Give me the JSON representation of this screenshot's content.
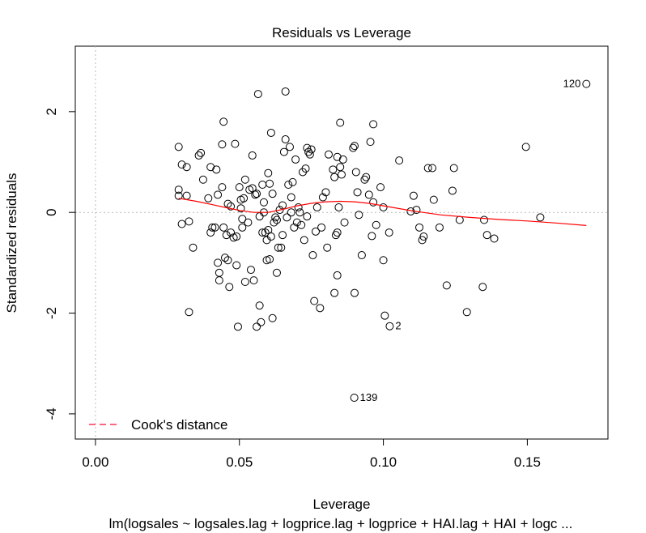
{
  "chart_data": {
    "type": "scatter",
    "title": "Residuals vs Leverage",
    "xlabel": "Leverage",
    "ylabel": "Standardized residuals",
    "subtitle": "lm(logsales ~ logsales.lag + logprice.lag + logprice + HAI.lag + HAI + logc ...",
    "xlim": [
      -0.007,
      0.178
    ],
    "ylim": [
      -4.5,
      3.3
    ],
    "x_ticks": [
      0.0,
      0.05,
      0.1,
      0.15
    ],
    "x_tick_labels": [
      "0.00",
      "0.05",
      "0.10",
      "0.15"
    ],
    "y_ticks": [
      -4,
      -2,
      0,
      2
    ],
    "y_tick_labels": [
      "-4",
      "-2",
      "0",
      "2"
    ],
    "grid": false,
    "reference_lines": [
      {
        "axis": "x",
        "value": 0,
        "style": "dotted",
        "color": "#bbbbbb"
      },
      {
        "axis": "y",
        "value": 0,
        "style": "dotted",
        "color": "#bbbbbb"
      }
    ],
    "legend": {
      "position": "bottom-left",
      "entries": [
        {
          "label": "Cook's distance",
          "color": "#ff3355",
          "style": "dashed"
        }
      ]
    },
    "colors": {
      "points": "#000000",
      "smoother": "#ff0000",
      "reference": "#bbbbbb"
    },
    "points": [
      {
        "x": 0.1705,
        "y": 2.55,
        "label": "120"
      },
      {
        "x": 0.0899,
        "y": -3.68,
        "label": "139"
      },
      {
        "x": 0.1022,
        "y": -2.26,
        "label": "2"
      },
      {
        "x": 0.0289,
        "y": 1.3
      },
      {
        "x": 0.0289,
        "y": 0.45
      },
      {
        "x": 0.0289,
        "y": 0.33
      },
      {
        "x": 0.03,
        "y": 0.95
      },
      {
        "x": 0.03,
        "y": -0.23
      },
      {
        "x": 0.0317,
        "y": 0.9
      },
      {
        "x": 0.0317,
        "y": 0.33
      },
      {
        "x": 0.0325,
        "y": -0.18
      },
      {
        "x": 0.0325,
        "y": -1.98
      },
      {
        "x": 0.0339,
        "y": -0.7
      },
      {
        "x": 0.0359,
        "y": 1.13
      },
      {
        "x": 0.0366,
        "y": 1.18
      },
      {
        "x": 0.0374,
        "y": 0.65
      },
      {
        "x": 0.0392,
        "y": 0.28
      },
      {
        "x": 0.04,
        "y": -0.4
      },
      {
        "x": 0.04,
        "y": 0.9
      },
      {
        "x": 0.0406,
        "y": -0.3
      },
      {
        "x": 0.0415,
        "y": -0.3
      },
      {
        "x": 0.042,
        "y": 0.85
      },
      {
        "x": 0.0425,
        "y": 0.35
      },
      {
        "x": 0.0425,
        "y": -1.0
      },
      {
        "x": 0.043,
        "y": -1.2
      },
      {
        "x": 0.043,
        "y": -1.35
      },
      {
        "x": 0.044,
        "y": 1.35
      },
      {
        "x": 0.044,
        "y": 0.5
      },
      {
        "x": 0.0445,
        "y": -0.3
      },
      {
        "x": 0.0445,
        "y": 1.8
      },
      {
        "x": 0.045,
        "y": -0.9
      },
      {
        "x": 0.0455,
        "y": -0.45
      },
      {
        "x": 0.046,
        "y": 0.17
      },
      {
        "x": 0.046,
        "y": -0.95
      },
      {
        "x": 0.0465,
        "y": -1.48
      },
      {
        "x": 0.047,
        "y": -0.4
      },
      {
        "x": 0.047,
        "y": 0.12
      },
      {
        "x": 0.048,
        "y": -0.5
      },
      {
        "x": 0.0485,
        "y": 1.36
      },
      {
        "x": 0.049,
        "y": -0.48
      },
      {
        "x": 0.049,
        "y": -1.05
      },
      {
        "x": 0.0495,
        "y": -2.27
      },
      {
        "x": 0.05,
        "y": 0.5
      },
      {
        "x": 0.0505,
        "y": 0.25
      },
      {
        "x": 0.0505,
        "y": 0.08
      },
      {
        "x": 0.051,
        "y": -0.13
      },
      {
        "x": 0.051,
        "y": -0.3
      },
      {
        "x": 0.0515,
        "y": 0.28
      },
      {
        "x": 0.052,
        "y": 0.65
      },
      {
        "x": 0.052,
        "y": -1.38
      },
      {
        "x": 0.053,
        "y": -0.2
      },
      {
        "x": 0.0535,
        "y": 0.45
      },
      {
        "x": 0.054,
        "y": -1.14
      },
      {
        "x": 0.0545,
        "y": 0.48
      },
      {
        "x": 0.0545,
        "y": 1.13
      },
      {
        "x": 0.055,
        "y": -1.35
      },
      {
        "x": 0.0555,
        "y": 0.35
      },
      {
        "x": 0.056,
        "y": 0.37
      },
      {
        "x": 0.056,
        "y": -2.27
      },
      {
        "x": 0.0565,
        "y": 2.35
      },
      {
        "x": 0.057,
        "y": -0.08
      },
      {
        "x": 0.057,
        "y": -1.85
      },
      {
        "x": 0.0575,
        "y": -2.18
      },
      {
        "x": 0.058,
        "y": 0.55
      },
      {
        "x": 0.058,
        "y": -0.4
      },
      {
        "x": 0.0585,
        "y": 0.0
      },
      {
        "x": 0.0585,
        "y": 0.2
      },
      {
        "x": 0.059,
        "y": -0.4
      },
      {
        "x": 0.0595,
        "y": -0.95
      },
      {
        "x": 0.0595,
        "y": -0.55
      },
      {
        "x": 0.06,
        "y": -0.35
      },
      {
        "x": 0.06,
        "y": 0.78
      },
      {
        "x": 0.0605,
        "y": 0.57
      },
      {
        "x": 0.0605,
        "y": -0.93
      },
      {
        "x": 0.061,
        "y": -0.48
      },
      {
        "x": 0.061,
        "y": 1.58
      },
      {
        "x": 0.0615,
        "y": -2.1
      },
      {
        "x": 0.0615,
        "y": 0.37
      },
      {
        "x": 0.062,
        "y": -0.2
      },
      {
        "x": 0.0625,
        "y": -0.1
      },
      {
        "x": 0.063,
        "y": -0.15
      },
      {
        "x": 0.063,
        "y": -1.2
      },
      {
        "x": 0.0635,
        "y": -0.7
      },
      {
        "x": 0.064,
        "y": 0.05
      },
      {
        "x": 0.0645,
        "y": -0.7
      },
      {
        "x": 0.065,
        "y": -0.45
      },
      {
        "x": 0.065,
        "y": 0.14
      },
      {
        "x": 0.0655,
        "y": 1.2
      },
      {
        "x": 0.066,
        "y": 1.45
      },
      {
        "x": 0.066,
        "y": 2.4
      },
      {
        "x": 0.0665,
        "y": -0.1
      },
      {
        "x": 0.067,
        "y": 0.55
      },
      {
        "x": 0.0675,
        "y": 1.3
      },
      {
        "x": 0.068,
        "y": 0.3
      },
      {
        "x": 0.068,
        "y": 0.0
      },
      {
        "x": 0.0685,
        "y": 0.6
      },
      {
        "x": 0.069,
        "y": -0.3
      },
      {
        "x": 0.0695,
        "y": 1.05
      },
      {
        "x": 0.07,
        "y": -0.2
      },
      {
        "x": 0.0705,
        "y": 0.1
      },
      {
        "x": 0.071,
        "y": 0.0
      },
      {
        "x": 0.0715,
        "y": -0.25
      },
      {
        "x": 0.072,
        "y": 0.8
      },
      {
        "x": 0.0725,
        "y": -0.55
      },
      {
        "x": 0.073,
        "y": 0.87
      },
      {
        "x": 0.0735,
        "y": 1.28
      },
      {
        "x": 0.0735,
        "y": -0.08
      },
      {
        "x": 0.074,
        "y": 1.2
      },
      {
        "x": 0.0745,
        "y": 1.15
      },
      {
        "x": 0.075,
        "y": 1.25
      },
      {
        "x": 0.0755,
        "y": -0.85
      },
      {
        "x": 0.076,
        "y": -1.76
      },
      {
        "x": 0.0765,
        "y": -0.38
      },
      {
        "x": 0.077,
        "y": 0.1
      },
      {
        "x": 0.078,
        "y": -1.9
      },
      {
        "x": 0.0785,
        "y": -0.3
      },
      {
        "x": 0.079,
        "y": 0.3
      },
      {
        "x": 0.08,
        "y": 0.4
      },
      {
        "x": 0.0805,
        "y": -0.7
      },
      {
        "x": 0.081,
        "y": 1.15
      },
      {
        "x": 0.0825,
        "y": 0.85
      },
      {
        "x": 0.083,
        "y": 0.7
      },
      {
        "x": 0.083,
        "y": -1.6
      },
      {
        "x": 0.0835,
        "y": -0.45
      },
      {
        "x": 0.084,
        "y": 1.1
      },
      {
        "x": 0.084,
        "y": -1.25
      },
      {
        "x": 0.084,
        "y": -0.4
      },
      {
        "x": 0.0845,
        "y": 0.1
      },
      {
        "x": 0.085,
        "y": 0.9
      },
      {
        "x": 0.085,
        "y": 1.78
      },
      {
        "x": 0.0855,
        "y": 0.75
      },
      {
        "x": 0.086,
        "y": 1.05
      },
      {
        "x": 0.0865,
        "y": -0.2
      },
      {
        "x": 0.0895,
        "y": 1.28
      },
      {
        "x": 0.09,
        "y": 1.32
      },
      {
        "x": 0.09,
        "y": -1.6
      },
      {
        "x": 0.0905,
        "y": 0.8
      },
      {
        "x": 0.091,
        "y": 0.4
      },
      {
        "x": 0.0915,
        "y": -0.05
      },
      {
        "x": 0.0925,
        "y": -0.85
      },
      {
        "x": 0.0935,
        "y": 0.65
      },
      {
        "x": 0.094,
        "y": 0.7
      },
      {
        "x": 0.095,
        "y": 0.35
      },
      {
        "x": 0.0955,
        "y": 1.4
      },
      {
        "x": 0.096,
        "y": -0.47
      },
      {
        "x": 0.0965,
        "y": 0.2
      },
      {
        "x": 0.0965,
        "y": 1.75
      },
      {
        "x": 0.0975,
        "y": -0.25
      },
      {
        "x": 0.099,
        "y": 0.5
      },
      {
        "x": 0.1,
        "y": 0.1
      },
      {
        "x": 0.1,
        "y": -0.95
      },
      {
        "x": 0.1005,
        "y": -2.05
      },
      {
        "x": 0.102,
        "y": -0.4
      },
      {
        "x": 0.1055,
        "y": 1.03
      },
      {
        "x": 0.1095,
        "y": 0.02
      },
      {
        "x": 0.1105,
        "y": 0.33
      },
      {
        "x": 0.1115,
        "y": 0.05
      },
      {
        "x": 0.1125,
        "y": -0.3
      },
      {
        "x": 0.1135,
        "y": -0.55
      },
      {
        "x": 0.114,
        "y": -0.48
      },
      {
        "x": 0.1155,
        "y": 0.88
      },
      {
        "x": 0.117,
        "y": 0.88
      },
      {
        "x": 0.1175,
        "y": 0.25
      },
      {
        "x": 0.1195,
        "y": -0.3
      },
      {
        "x": 0.122,
        "y": -1.45
      },
      {
        "x": 0.124,
        "y": 0.43
      },
      {
        "x": 0.1245,
        "y": 0.88
      },
      {
        "x": 0.1265,
        "y": -0.15
      },
      {
        "x": 0.129,
        "y": -1.98
      },
      {
        "x": 0.1345,
        "y": -1.48
      },
      {
        "x": 0.135,
        "y": -0.15
      },
      {
        "x": 0.136,
        "y": -0.45
      },
      {
        "x": 0.1385,
        "y": -0.52
      },
      {
        "x": 0.1495,
        "y": 1.3
      },
      {
        "x": 0.1545,
        "y": -0.1
      }
    ],
    "smoother": {
      "x": [
        0.0289,
        0.035,
        0.04,
        0.045,
        0.05,
        0.055,
        0.06,
        0.065,
        0.07,
        0.075,
        0.08,
        0.085,
        0.09,
        0.095,
        0.1,
        0.11,
        0.12,
        0.13,
        0.14,
        0.15,
        0.16,
        0.1705
      ],
      "y": [
        0.28,
        0.22,
        0.16,
        0.1,
        0.04,
        0.0,
        0.0,
        0.06,
        0.13,
        0.18,
        0.21,
        0.22,
        0.21,
        0.18,
        0.13,
        0.03,
        -0.05,
        -0.1,
        -0.14,
        -0.17,
        -0.21,
        -0.26
      ]
    }
  }
}
